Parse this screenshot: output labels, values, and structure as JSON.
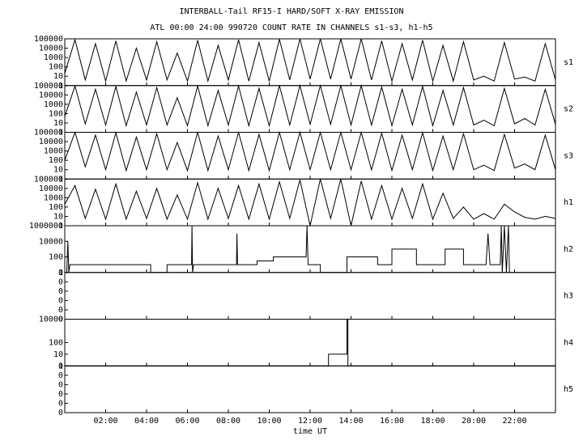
{
  "header": {
    "title": "INTERBALL-Tail RF15-I HARD/SOFT X-RAY EMISSION",
    "subtitle": "ATL 00:00 24:00 990720  COUNT RATE IN CHANNELS s1-s3, h1-h5"
  },
  "chart_data": [
    {
      "type": "line",
      "name": "s1",
      "yscale": "log",
      "color": "#000000",
      "xlim": [
        0,
        24
      ],
      "ylim": [
        1,
        100000
      ],
      "yticks": [
        1,
        10,
        100,
        1000,
        10000,
        100000
      ],
      "x": [
        0,
        0.5,
        1,
        1.5,
        2,
        2.5,
        3,
        3.5,
        4,
        4.5,
        5,
        5.5,
        6,
        6.5,
        7,
        7.5,
        8,
        8.5,
        9,
        9.5,
        10,
        10.5,
        11,
        11.5,
        12,
        12.5,
        13,
        13.5,
        14,
        14.5,
        15,
        15.5,
        16,
        16.5,
        17,
        17.5,
        18,
        18.5,
        19,
        19.5,
        20,
        20.5,
        21,
        21.5,
        22,
        22.5,
        23,
        23.5,
        24
      ],
      "values": [
        20,
        80000,
        4,
        30000,
        3,
        60000,
        3,
        10000,
        4,
        50000,
        4,
        3000,
        3,
        70000,
        3,
        20000,
        4,
        80000,
        3,
        40000,
        3,
        90000,
        4,
        100000,
        5,
        100000,
        5,
        100000,
        5,
        100000,
        4,
        60000,
        3,
        30000,
        4,
        70000,
        3,
        20000,
        3,
        50000,
        4,
        10,
        3,
        40000,
        5,
        8,
        3,
        30000,
        4
      ]
    },
    {
      "type": "line",
      "name": "s2",
      "yscale": "log",
      "color": "#000000",
      "xlim": [
        0,
        24
      ],
      "ylim": [
        1,
        100000
      ],
      "yticks": [
        1,
        10,
        100,
        1000,
        10000,
        100000
      ],
      "x": [
        0,
        0.5,
        1,
        1.5,
        2,
        2.5,
        3,
        3.5,
        4,
        4.5,
        5,
        5.5,
        6,
        6.5,
        7,
        7.5,
        8,
        8.5,
        9,
        9.5,
        10,
        10.5,
        11,
        11.5,
        12,
        12.5,
        13,
        13.5,
        14,
        14.5,
        15,
        15.5,
        16,
        16.5,
        17,
        17.5,
        18,
        18.5,
        19,
        19.5,
        20,
        20.5,
        21,
        21.5,
        22,
        22.5,
        23,
        23.5,
        24
      ],
      "values": [
        50,
        90000,
        8,
        40000,
        6,
        80000,
        5,
        20000,
        6,
        60000,
        6,
        5000,
        5,
        90000,
        5,
        30000,
        6,
        90000,
        5,
        50000,
        5,
        100000,
        6,
        100000,
        7,
        100000,
        7,
        100000,
        6,
        100000,
        6,
        70000,
        5,
        40000,
        6,
        80000,
        5,
        30000,
        6,
        60000,
        6,
        20,
        5,
        50000,
        8,
        30,
        6,
        40000,
        7
      ]
    },
    {
      "type": "line",
      "name": "s3",
      "yscale": "log",
      "color": "#000000",
      "xlim": [
        0,
        24
      ],
      "ylim": [
        1,
        100000
      ],
      "yticks": [
        1,
        10,
        100,
        1000,
        10000,
        100000
      ],
      "x": [
        0,
        0.5,
        1,
        1.5,
        2,
        2.5,
        3,
        3.5,
        4,
        4.5,
        5,
        5.5,
        6,
        6.5,
        7,
        7.5,
        8,
        8.5,
        9,
        9.5,
        10,
        10.5,
        11,
        11.5,
        12,
        12.5,
        13,
        13.5,
        14,
        14.5,
        15,
        15.5,
        16,
        16.5,
        17,
        17.5,
        18,
        18.5,
        19,
        19.5,
        20,
        20.5,
        21,
        21.5,
        22,
        22.5,
        23,
        23.5,
        24
      ],
      "values": [
        100,
        100000,
        20,
        50000,
        10,
        90000,
        8,
        30000,
        10,
        70000,
        10,
        8000,
        8,
        100000,
        8,
        40000,
        10,
        100000,
        8,
        60000,
        8,
        100000,
        10,
        100000,
        10,
        100000,
        10,
        100000,
        10,
        100000,
        10,
        80000,
        8,
        50000,
        10,
        90000,
        8,
        40000,
        10,
        70000,
        10,
        30,
        8,
        60000,
        15,
        40,
        10,
        50000,
        10
      ]
    },
    {
      "type": "line",
      "name": "h1",
      "yscale": "log",
      "color": "#000000",
      "xlim": [
        0,
        24
      ],
      "ylim": [
        1,
        100000
      ],
      "yticks": [
        1,
        10,
        100,
        1000,
        10000,
        100000
      ],
      "x": [
        0,
        0.5,
        1,
        1.5,
        2,
        2.5,
        3,
        3.5,
        4,
        4.5,
        5,
        5.5,
        6,
        6.5,
        7,
        7.5,
        8,
        8.5,
        9,
        9.5,
        10,
        10.5,
        11,
        11.5,
        12,
        12.5,
        13,
        13.5,
        14,
        14.5,
        15,
        15.5,
        16,
        16.5,
        17,
        17.5,
        18,
        18.5,
        19,
        19.5,
        20,
        20.5,
        21,
        21.5,
        22,
        22.5,
        23,
        23.5,
        24
      ],
      "values": [
        200,
        20000,
        6,
        8000,
        5,
        30000,
        5,
        5000,
        6,
        10000,
        5,
        2000,
        5,
        40000,
        5,
        10000,
        6,
        20000,
        5,
        30000,
        5,
        50000,
        6,
        80000,
        1,
        100000,
        6,
        100000,
        1,
        60000,
        5,
        20000,
        5,
        10000,
        6,
        30000,
        5,
        3000,
        6,
        100,
        5,
        20,
        5,
        200,
        30,
        8,
        5,
        10,
        6
      ]
    },
    {
      "type": "line",
      "name": "h2",
      "yscale": "log",
      "color": "#000000",
      "xlim": [
        0,
        24
      ],
      "ylim": [
        1,
        1000000
      ],
      "yticks": [
        1,
        100,
        10000,
        1000000
      ],
      "x": [
        0.1,
        0.15,
        0.2,
        0.25,
        4.2,
        4.2,
        5.0,
        5.0,
        6.2,
        6.22,
        6.25,
        6.3,
        8.4,
        8.42,
        8.45,
        9.4,
        9.4,
        10.2,
        10.2,
        11.8,
        11.85,
        11.9,
        12.5,
        12.5,
        13.8,
        13.8,
        15.3,
        15.3,
        16.0,
        16.0,
        17.2,
        17.2,
        18.6,
        18.6,
        19.5,
        19.5,
        20.6,
        20.7,
        20.8,
        21.3,
        21.35,
        21.4,
        21.5,
        21.6,
        21.7,
        21.75
      ],
      "values": [
        1,
        10000,
        1,
        10,
        10,
        1,
        1,
        10,
        10,
        1000000,
        1,
        10,
        10,
        100000,
        10,
        10,
        30,
        30,
        100,
        100,
        1000000,
        10,
        10,
        1,
        1,
        100,
        100,
        10,
        10,
        1000,
        1000,
        10,
        10,
        1000,
        1000,
        10,
        10,
        100000,
        10,
        10,
        1000000,
        1,
        1000000,
        1,
        1000000,
        1
      ]
    },
    {
      "type": "line",
      "name": "h3",
      "yscale": "log",
      "color": "#000000",
      "xlim": [
        0,
        24
      ],
      "ylim": [
        1,
        100000
      ],
      "yticks": [
        {
          "value": 1,
          "label": "0"
        },
        {
          "value": 10,
          "label": "0"
        },
        {
          "value": 100,
          "label": "0"
        },
        {
          "value": 1000,
          "label": "0"
        },
        {
          "value": 10000,
          "label": "0"
        },
        {
          "value": 100000,
          "label": "0"
        }
      ]
    },
    {
      "type": "line",
      "name": "h4",
      "yscale": "log",
      "color": "#000000",
      "xlim": [
        0,
        24
      ],
      "ylim": [
        1,
        10000
      ],
      "yticks": [
        1,
        10,
        100,
        10000
      ],
      "x": [
        0,
        12.9,
        12.9,
        13.8,
        13.8,
        13.85,
        13.85,
        24
      ],
      "values": [
        1,
        1,
        10,
        10,
        10000,
        10000,
        1,
        1
      ]
    },
    {
      "type": "line",
      "name": "h5",
      "yscale": "log",
      "color": "#000000",
      "xlim": [
        0,
        24
      ],
      "ylim": [
        1,
        100000
      ],
      "yticks": [
        {
          "value": 1,
          "label": "0"
        },
        {
          "value": 10,
          "label": "0"
        },
        {
          "value": 100,
          "label": "0"
        },
        {
          "value": 1000,
          "label": "0"
        },
        {
          "value": 10000,
          "label": "0"
        },
        {
          "value": 100000,
          "label": "0"
        }
      ],
      "xlabel": "time UT",
      "xticks": [
        {
          "value": 2,
          "label": "02:00"
        },
        {
          "value": 4,
          "label": "04:00"
        },
        {
          "value": 6,
          "label": "06:00"
        },
        {
          "value": 8,
          "label": "08:00"
        },
        {
          "value": 10,
          "label": "10:00"
        },
        {
          "value": 12,
          "label": "12:00"
        },
        {
          "value": 14,
          "label": "14:00"
        },
        {
          "value": 16,
          "label": "16:00"
        },
        {
          "value": 18,
          "label": "18:00"
        },
        {
          "value": 20,
          "label": "20:00"
        },
        {
          "value": 22,
          "label": "22:00"
        }
      ]
    }
  ]
}
